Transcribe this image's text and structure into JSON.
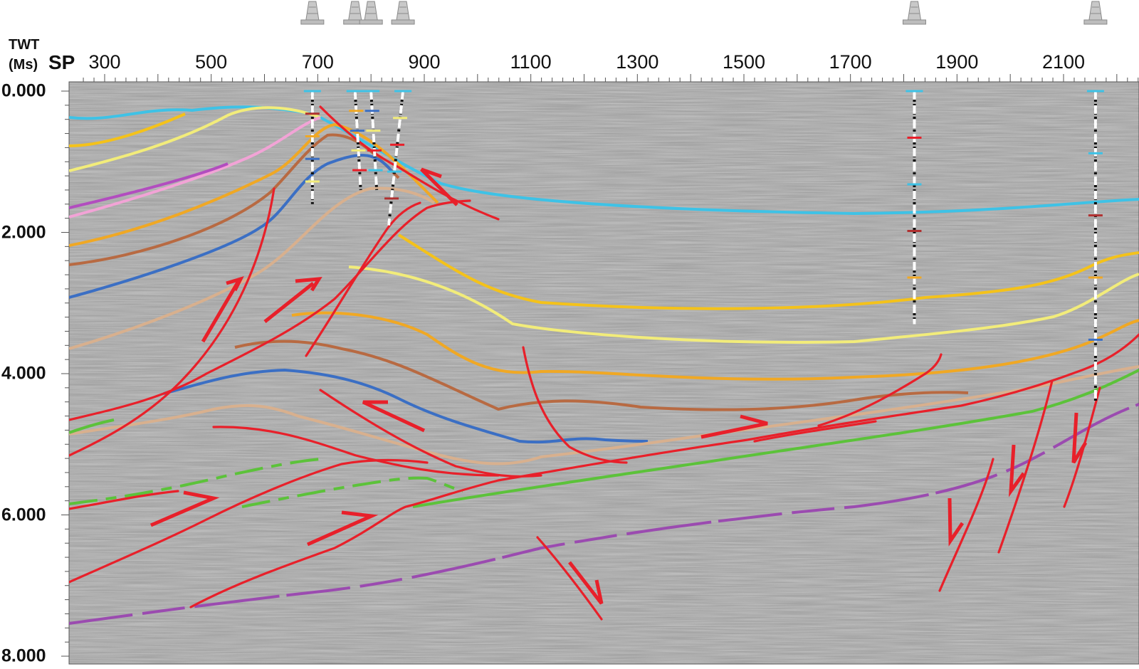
{
  "axes": {
    "vertical_title": "TWT",
    "vertical_unit": "(Ms)",
    "horizontal_title": "SP",
    "sp_ticks": [
      "300",
      "500",
      "700",
      "900",
      "1100",
      "1300",
      "1500",
      "1700",
      "1900",
      "2100"
    ],
    "twt_ticks": [
      "0.000",
      "2.000",
      "4.000",
      "6.000",
      "8.000"
    ]
  },
  "wells": [
    {
      "sp": 690,
      "depth_ms": 1600
    },
    {
      "sp": 770,
      "depth_ms": 1400
    },
    {
      "sp": 800,
      "depth_ms": 1400
    },
    {
      "sp": 860,
      "depth_ms": 1900
    },
    {
      "sp": 1820,
      "depth_ms": 3300
    },
    {
      "sp": 2160,
      "depth_ms": 4400
    }
  ],
  "colors": {
    "background": "#ffffff",
    "seismic_gray": "#9a9a9a",
    "fault": "#e8202a",
    "horizon_cyan": "#3ec2e6",
    "horizon_yellow": "#f4c21a",
    "horizon_paleyellow": "#f2ec7a",
    "horizon_pink": "#f2a3d6",
    "horizon_magenta": "#b24dbf",
    "horizon_orange": "#f0a824",
    "horizon_brown": "#b86a42",
    "horizon_blue": "#3b6fc4",
    "horizon_tan": "#d8b08e",
    "horizon_green": "#5cc23a",
    "horizon_purple": "#9b4bb0"
  },
  "icons": [
    "drilling-rig-icon"
  ]
}
